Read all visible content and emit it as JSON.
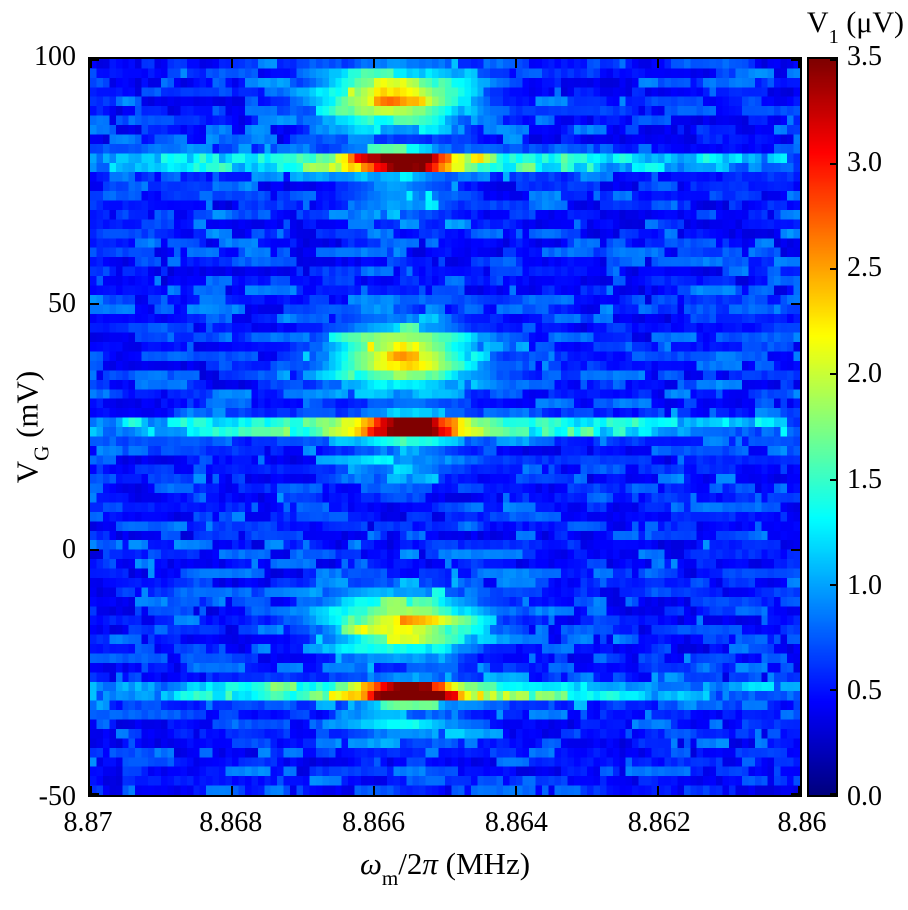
{
  "labels": {
    "x": {
      "pre": "ω",
      "sub": "m",
      "mid": "/2",
      "pi": "π",
      "post": " (MHz)"
    },
    "y": {
      "pre": "V",
      "sub": "G",
      "post": " (mV)"
    },
    "cbar": {
      "pre": "V",
      "sub": "1",
      "post": " (μV)"
    }
  },
  "chart_data": {
    "type": "heatmap",
    "title": "",
    "xlabel": "ω_m/2π (MHz)",
    "ylabel": "V_G (mV)",
    "colorbar_label": "V_1 (μV)",
    "colormap": "jet",
    "x_range": [
      8.87,
      8.86
    ],
    "x_axis_reversed": true,
    "y_range": [
      -50,
      100
    ],
    "color_range": [
      0.0,
      3.5
    ],
    "x_tick_labels": [
      "8.87",
      "8.868",
      "8.866",
      "8.864",
      "8.862",
      "8.86"
    ],
    "y_tick_labels": [
      "100",
      "50",
      "0",
      "-50"
    ],
    "colorbar_tick_labels": [
      "3.5",
      "3.0",
      "2.5",
      "2.0",
      "1.5",
      "1.0",
      "0.5",
      "0.0"
    ],
    "grid": {
      "nx": 110,
      "ny": 78
    },
    "background": {
      "base_uV": 0.3,
      "noise_uV": 0.55,
      "jitter_uV": 0.12
    },
    "description": "Three mechanical resonance features vs gate voltage: narrow bright (saturated red, ~3.5 uV) horizontal streaks at V_G ~ 79, 25 and -29 mV centered near 8.8655 MHz, each with a broader yellow-green blob (~2.2 uV) about 13-14 mV above it, on a noisy dark-blue background (~0.3-0.9 uV).",
    "features": [
      {
        "name": "resonance-1-band",
        "x0": 8.8656,
        "y0": 79,
        "amp": 1.15,
        "sx": 0.0022,
        "sy": 1.4
      },
      {
        "name": "resonance-1-core",
        "x0": 8.8656,
        "y0": 79,
        "amp": 2.7,
        "sx": 0.00045,
        "sy": 1.5
      },
      {
        "name": "resonance-1-upper-blob",
        "x0": 8.8657,
        "y0": 92,
        "amp": 1.9,
        "sx": 0.0007,
        "sy": 4.0
      },
      {
        "name": "resonance-1-lower-tail",
        "x0": 8.8656,
        "y0": 71,
        "amp": 0.6,
        "sx": 0.0006,
        "sy": 3.0
      },
      {
        "name": "resonance-2-band",
        "x0": 8.8655,
        "y0": 25,
        "amp": 1.15,
        "sx": 0.0022,
        "sy": 1.4
      },
      {
        "name": "resonance-2-core",
        "x0": 8.8655,
        "y0": 25,
        "amp": 2.7,
        "sx": 0.00045,
        "sy": 1.5
      },
      {
        "name": "resonance-2-upper-blob",
        "x0": 8.8656,
        "y0": 39,
        "amp": 1.85,
        "sx": 0.0007,
        "sy": 4.5
      },
      {
        "name": "resonance-2-lower-tail",
        "x0": 8.8655,
        "y0": 18,
        "amp": 0.55,
        "sx": 0.0006,
        "sy": 3.0
      },
      {
        "name": "resonance-3-band",
        "x0": 8.8655,
        "y0": -29,
        "amp": 1.15,
        "sx": 0.0022,
        "sy": 1.4
      },
      {
        "name": "resonance-3-core",
        "x0": 8.8655,
        "y0": -29,
        "amp": 2.7,
        "sx": 0.00045,
        "sy": 1.5
      },
      {
        "name": "resonance-3-upper-blob",
        "x0": 8.8656,
        "y0": -15,
        "amp": 1.8,
        "sx": 0.0007,
        "sy": 4.2
      },
      {
        "name": "resonance-3-lower-tail",
        "x0": 8.8655,
        "y0": -36,
        "amp": 0.5,
        "sx": 0.0006,
        "sy": 3.0
      }
    ],
    "row_bands": [
      {
        "y0": 79,
        "amp": 0.4,
        "sy": 1.3
      },
      {
        "y0": 25,
        "amp": 0.4,
        "sy": 1.3
      },
      {
        "y0": -29,
        "amp": 0.4,
        "sy": 1.3
      }
    ]
  }
}
